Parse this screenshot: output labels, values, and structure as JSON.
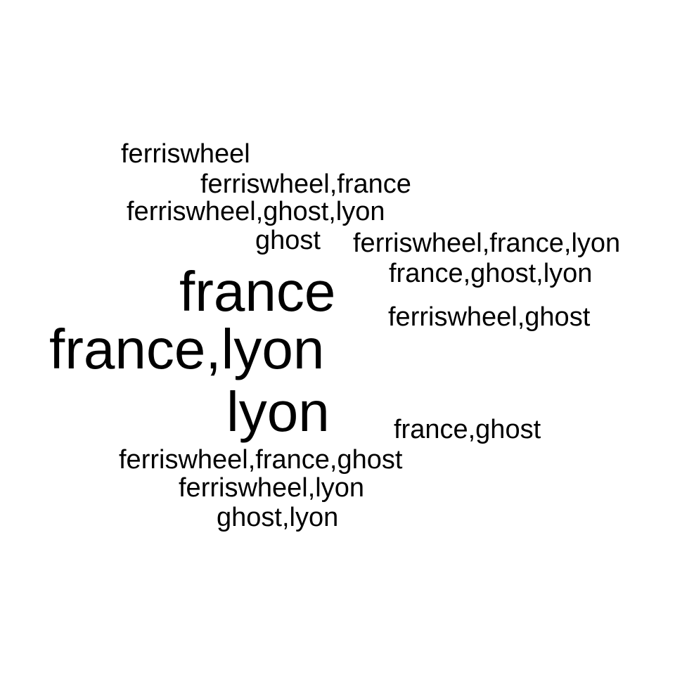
{
  "wordcloud": {
    "words": [
      {
        "text": "ferriswheel",
        "size": "small"
      },
      {
        "text": "ferriswheel,france",
        "size": "small"
      },
      {
        "text": "ferriswheel,ghost,lyon",
        "size": "small"
      },
      {
        "text": "ghost",
        "size": "small"
      },
      {
        "text": "ferriswheel,france,lyon",
        "size": "small"
      },
      {
        "text": "france,ghost,lyon",
        "size": "small"
      },
      {
        "text": "france",
        "size": "large"
      },
      {
        "text": "ferriswheel,ghost",
        "size": "small"
      },
      {
        "text": "france,lyon",
        "size": "large"
      },
      {
        "text": "lyon",
        "size": "large"
      },
      {
        "text": "france,ghost",
        "size": "small"
      },
      {
        "text": "ferriswheel,france,ghost",
        "size": "small"
      },
      {
        "text": "ferriswheel,lyon",
        "size": "small"
      },
      {
        "text": "ghost,lyon",
        "size": "small"
      }
    ],
    "text_color": "#000000",
    "background_color": "#ffffff"
  }
}
